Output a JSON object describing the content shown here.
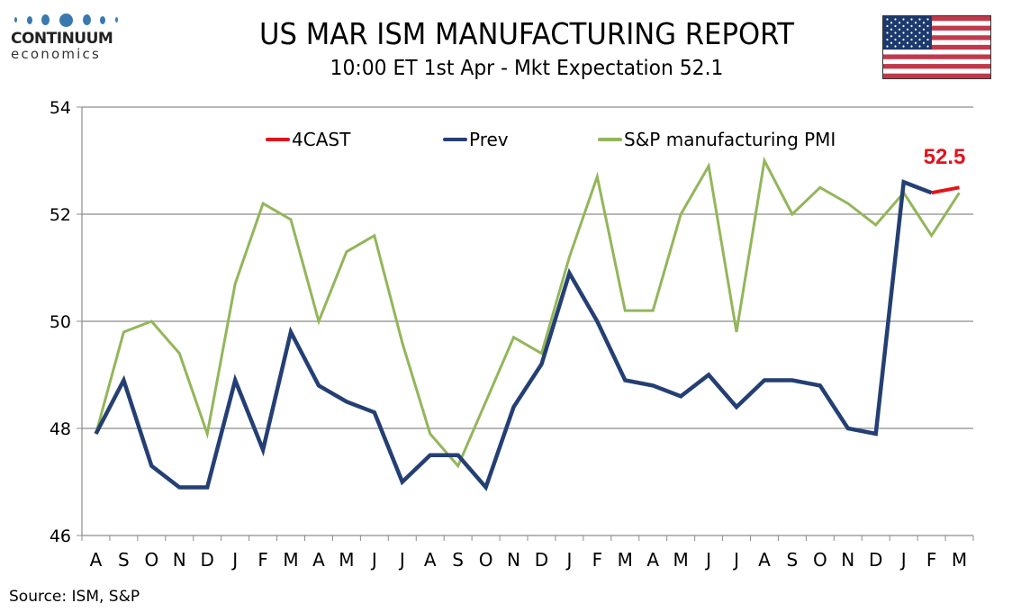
{
  "header": {
    "logo_name": "CONTINUUM",
    "logo_sub": "economics",
    "title": "US MAR ISM MANUFACTURING REPORT",
    "subtitle": "10:00 ET 1st Apr - Mkt Expectation 52.1",
    "flag_icon": "us-flag-icon"
  },
  "footer": {
    "source": "Source: ISM, S&P"
  },
  "colors": {
    "forecast": "#e3131b",
    "prev": "#243f73",
    "pmi": "#93b65a",
    "grid": "#8c8c8c"
  },
  "chart_data": {
    "type": "line",
    "title": "US MAR ISM MANUFACTURING REPORT",
    "subtitle": "10:00 ET 1st Apr - Mkt Expectation 52.1",
    "xlabel": "",
    "ylabel": "",
    "ylim": [
      46,
      54
    ],
    "yticks": [
      46,
      48,
      50,
      52,
      54
    ],
    "grid": true,
    "legend_position": "top",
    "categories": [
      "A",
      "S",
      "O",
      "N",
      "D",
      "J",
      "F",
      "M",
      "A",
      "M",
      "J",
      "J",
      "A",
      "S",
      "O",
      "N",
      "D",
      "J",
      "F",
      "M",
      "A",
      "M",
      "J",
      "J",
      "A",
      "S",
      "O",
      "N",
      "D",
      "J",
      "F",
      "M"
    ],
    "series": [
      {
        "name": "4CAST",
        "color": "#e3131b",
        "values": [
          null,
          null,
          null,
          null,
          null,
          null,
          null,
          null,
          null,
          null,
          null,
          null,
          null,
          null,
          null,
          null,
          null,
          null,
          null,
          null,
          null,
          null,
          null,
          null,
          null,
          null,
          null,
          null,
          null,
          null,
          52.4,
          52.5
        ]
      },
      {
        "name": "Prev",
        "color": "#243f73",
        "values": [
          47.9,
          48.9,
          47.3,
          46.9,
          46.9,
          48.9,
          47.6,
          49.8,
          48.8,
          48.5,
          48.3,
          47.0,
          47.5,
          47.5,
          46.9,
          48.4,
          49.2,
          50.9,
          50.0,
          48.9,
          48.8,
          48.6,
          49.0,
          48.4,
          48.9,
          48.9,
          48.8,
          48.0,
          47.9,
          52.6,
          52.4,
          null
        ]
      },
      {
        "name": "S&P manufacturing PMI",
        "color": "#93b65a",
        "values": [
          47.9,
          49.8,
          50.0,
          49.4,
          47.9,
          50.7,
          52.2,
          51.9,
          50.0,
          51.3,
          51.6,
          49.6,
          47.9,
          47.3,
          48.5,
          49.7,
          49.4,
          51.2,
          52.7,
          50.2,
          50.2,
          52.0,
          52.9,
          49.8,
          53.0,
          52.0,
          52.5,
          52.2,
          51.8,
          52.4,
          51.6,
          52.4
        ]
      }
    ],
    "annotations": [
      {
        "text": "52.5",
        "series": "4CAST",
        "category_index": 31,
        "color": "#e3131b"
      }
    ]
  }
}
